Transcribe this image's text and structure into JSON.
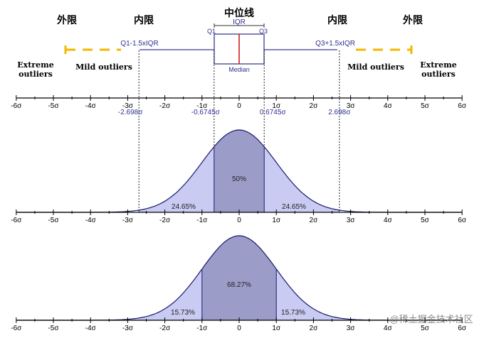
{
  "labels": {
    "outer_fence_left": "外限",
    "inner_fence_left": "内限",
    "center": "中位线",
    "inner_fence_right": "内限",
    "outer_fence_right": "外限",
    "iqr": "IQR",
    "q1": "Q1",
    "q3": "Q3",
    "median": "Median",
    "lower_fence_formula": "Q1-1.5xIQR",
    "upper_fence_formula": "Q3+1.5xIQR",
    "extreme_outliers": [
      "Extreme",
      "outliers"
    ],
    "mild_outliers": "Mild outliers",
    "watermark": "@稀土掘金技术社区"
  },
  "axis_ticks": [
    "-6σ",
    "-5σ",
    "-4σ",
    "-3σ",
    "-2σ",
    "-1σ",
    "0",
    "1σ",
    "2σ",
    "3σ",
    "4σ",
    "5σ",
    "6σ"
  ],
  "box_plot_marks": [
    {
      "label": "-2.698σ",
      "sigma": -2.698
    },
    {
      "label": "-0.6745σ",
      "sigma": -0.6745
    },
    {
      "label": "0.6745σ",
      "sigma": 0.6745
    },
    {
      "label": "2.698σ",
      "sigma": 2.698
    }
  ],
  "curve1": {
    "bounds_sigma": [
      -2.698,
      -0.6745,
      0.6745,
      2.698
    ],
    "center_label": "50%",
    "side_labels": [
      "24.65%",
      "24.65%"
    ]
  },
  "curve2": {
    "bounds_sigma": [
      -1,
      1
    ],
    "center_label": "68.27%",
    "side_labels": [
      "15.73%",
      "15.73%"
    ]
  },
  "colors": {
    "fill_light": "#c9cbf2",
    "fill_dark": "#9c9cc8",
    "curve_line": "#1a1a6e",
    "box_line": "#3b3b8f",
    "median_line": "#cc1111",
    "fence_dash": "#f1b800",
    "label_blue": "#2e3192",
    "axis": "#000000"
  }
}
